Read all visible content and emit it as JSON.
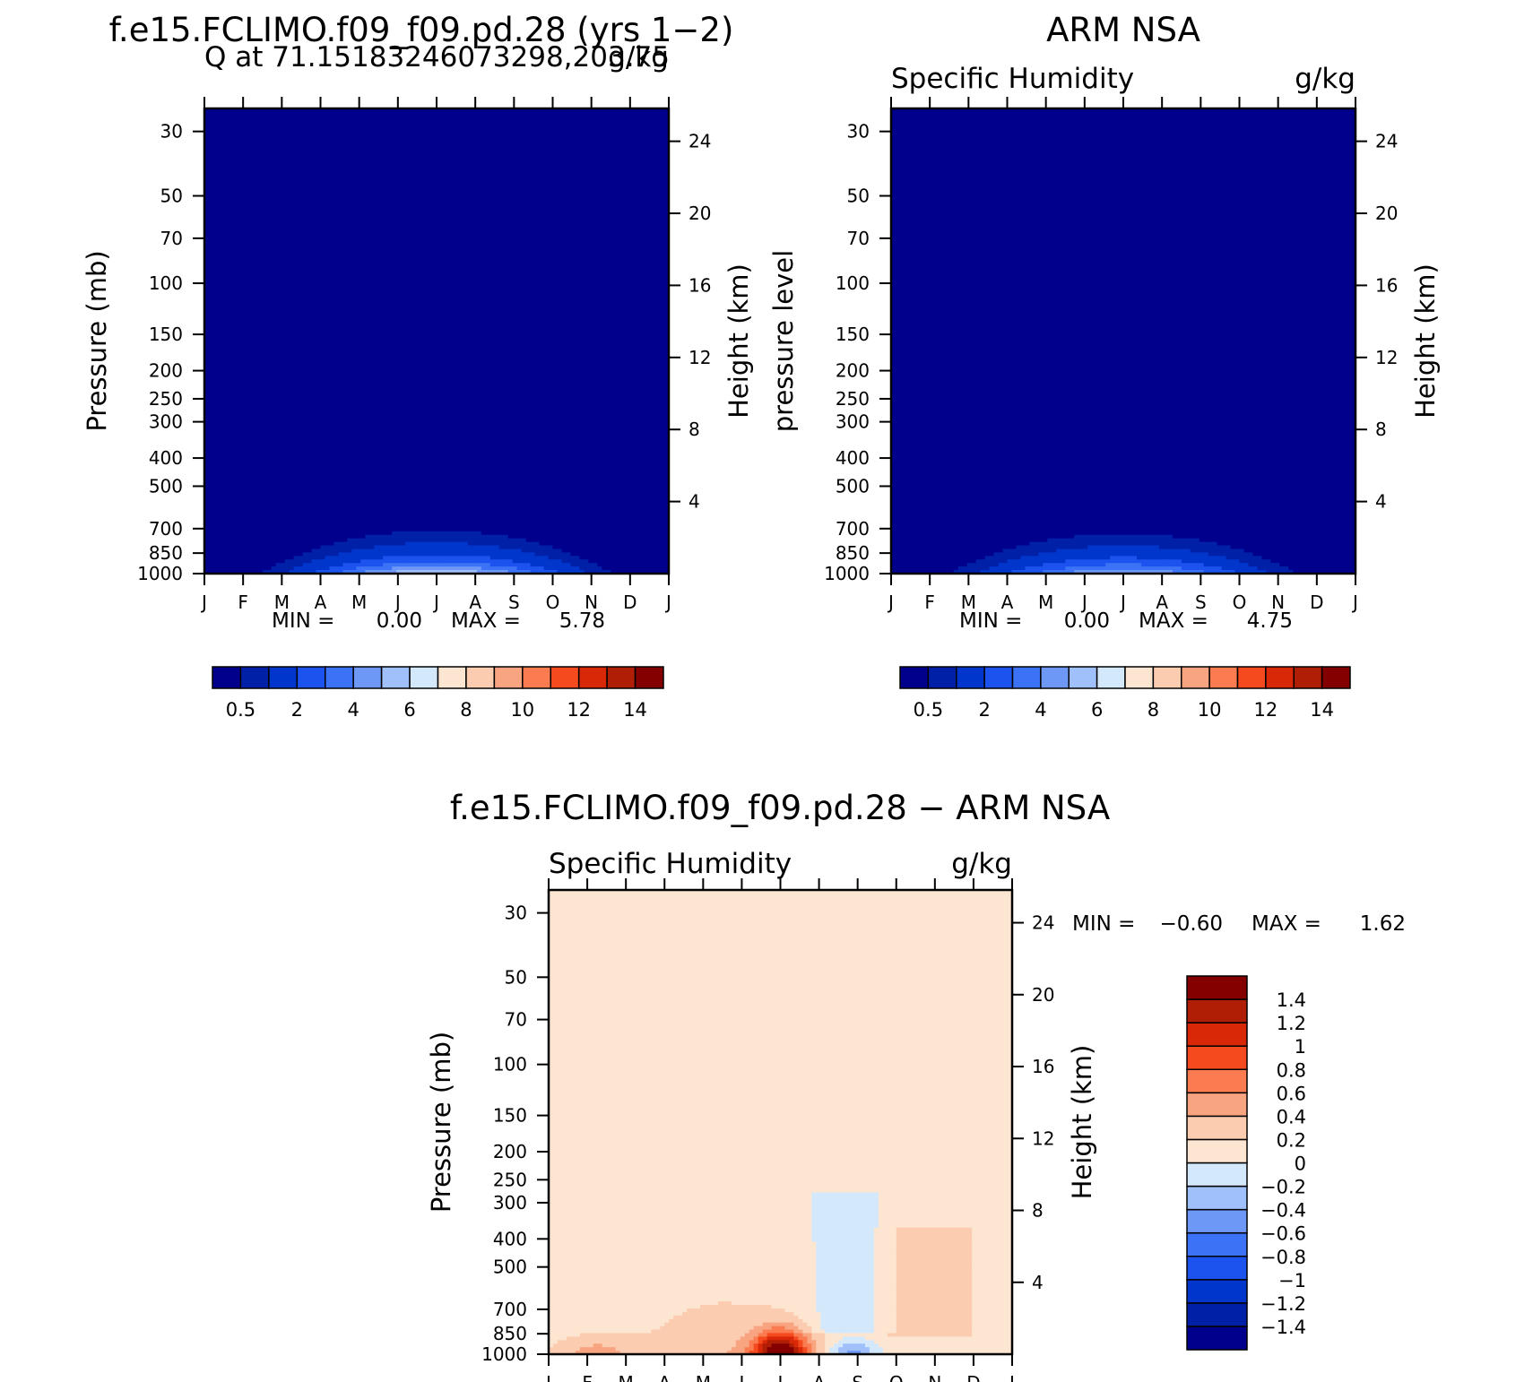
{
  "chart_data": [
    {
      "type": "heatmap",
      "title": "f.e15.FCLIMO.f09_f09.pd.28 (yrs 1-2)",
      "subtitle_left": "Q at 71.15183246073298,203.75",
      "subtitle_right": "g/kg",
      "ylabel": "Pressure (mb)",
      "ylabel_right": "Height (km)",
      "xlabel": "",
      "x": [
        "J",
        "F",
        "M",
        "A",
        "M",
        "J",
        "J",
        "A",
        "S",
        "O",
        "N",
        "D",
        "J"
      ],
      "pressure_ticks": [
        "30",
        "50",
        "70",
        "100",
        "150",
        "200",
        "250",
        "300",
        "400",
        "500",
        "700",
        "850",
        "1000"
      ],
      "height_ticks": [
        "24",
        "20",
        "16",
        "12",
        "8",
        "4"
      ],
      "ylim": [
        1000,
        25
      ],
      "min_label": "MIN =",
      "min_value": "0.00",
      "max_label": "MAX =",
      "max_value": "5.78",
      "levels": [
        0.5,
        1,
        2,
        3,
        4,
        5,
        6,
        7,
        8,
        9,
        10,
        11,
        12,
        13,
        14
      ],
      "colorbar_labels": [
        "0.5",
        "2",
        "4",
        "6",
        "8",
        "10",
        "12",
        "14"
      ],
      "colors": [
        "#00008c",
        "#0020a8",
        "#0036cc",
        "#1c52ee",
        "#3c72f6",
        "#6e98f6",
        "#a0c0fb",
        "#d4e8fc",
        "#fce6d2",
        "#fcccb0",
        "#f8a480",
        "#fa7c50",
        "#f54a1e",
        "#d82808",
        "#b01e05",
        "#840000"
      ],
      "field_peak": 5.78
    },
    {
      "type": "heatmap",
      "title": "ARM NSA",
      "subtitle_left": "Specific Humidity",
      "subtitle_right": "g/kg",
      "ylabel": "pressure level",
      "ylabel_right": "Height (km)",
      "xlabel": "",
      "x": [
        "J",
        "F",
        "M",
        "A",
        "M",
        "J",
        "J",
        "A",
        "S",
        "O",
        "N",
        "D",
        "J"
      ],
      "pressure_ticks": [
        "30",
        "50",
        "70",
        "100",
        "150",
        "200",
        "250",
        "300",
        "400",
        "500",
        "700",
        "850",
        "1000"
      ],
      "height_ticks": [
        "24",
        "20",
        "16",
        "12",
        "8",
        "4"
      ],
      "ylim": [
        1000,
        25
      ],
      "min_label": "MIN =",
      "min_value": "0.00",
      "max_label": "MAX =",
      "max_value": "4.75",
      "levels": [
        0.5,
        1,
        2,
        3,
        4,
        5,
        6,
        7,
        8,
        9,
        10,
        11,
        12,
        13,
        14
      ],
      "colorbar_labels": [
        "0.5",
        "2",
        "4",
        "6",
        "8",
        "10",
        "12",
        "14"
      ],
      "colors": [
        "#00008c",
        "#0020a8",
        "#0036cc",
        "#1c52ee",
        "#3c72f6",
        "#6e98f6",
        "#a0c0fb",
        "#d4e8fc",
        "#fce6d2",
        "#fcccb0",
        "#f8a480",
        "#fa7c50",
        "#f54a1e",
        "#d82808",
        "#b01e05",
        "#840000"
      ],
      "field_peak": 4.75
    },
    {
      "type": "heatmap",
      "title": "f.e15.FCLIMO.f09_f09.pd.28 - ARM NSA",
      "subtitle_left": "Specific Humidity",
      "subtitle_right": "g/kg",
      "ylabel": "Pressure (mb)",
      "ylabel_right": "Height (km)",
      "xlabel": "",
      "x": [
        "J",
        "F",
        "M",
        "A",
        "M",
        "J",
        "J",
        "A",
        "S",
        "O",
        "N",
        "D",
        "J"
      ],
      "pressure_ticks": [
        "30",
        "50",
        "70",
        "100",
        "150",
        "200",
        "250",
        "300",
        "400",
        "500",
        "700",
        "850",
        "1000"
      ],
      "height_ticks": [
        "24",
        "20",
        "16",
        "12",
        "8",
        "4"
      ],
      "ylim": [
        1000,
        25
      ],
      "min_label": "MIN =",
      "min_value": "-0.60",
      "max_label": "MAX =",
      "max_value": "1.62",
      "levels": [
        -1.4,
        -1.2,
        -1,
        -0.8,
        -0.6,
        -0.4,
        -0.2,
        0,
        0.2,
        0.4,
        0.6,
        0.8,
        1,
        1.2,
        1.4
      ],
      "colorbar_labels": [
        "1.4",
        "1.2",
        "1",
        "0.8",
        "0.6",
        "0.4",
        "0.2",
        "0",
        "-0.2",
        "-0.4",
        "-0.6",
        "-0.8",
        "-1",
        "-1.2",
        "-1.4"
      ],
      "colors": [
        "#00008c",
        "#0020a8",
        "#0036cc",
        "#1c52ee",
        "#3c72f6",
        "#6e98f6",
        "#a0c0fb",
        "#d4e8fc",
        "#fce6d2",
        "#fcccb0",
        "#f8a480",
        "#fa7c50",
        "#f54a1e",
        "#d82808",
        "#b01e05",
        "#840000"
      ],
      "field_peak": 1.62,
      "field_min": -0.6
    }
  ]
}
